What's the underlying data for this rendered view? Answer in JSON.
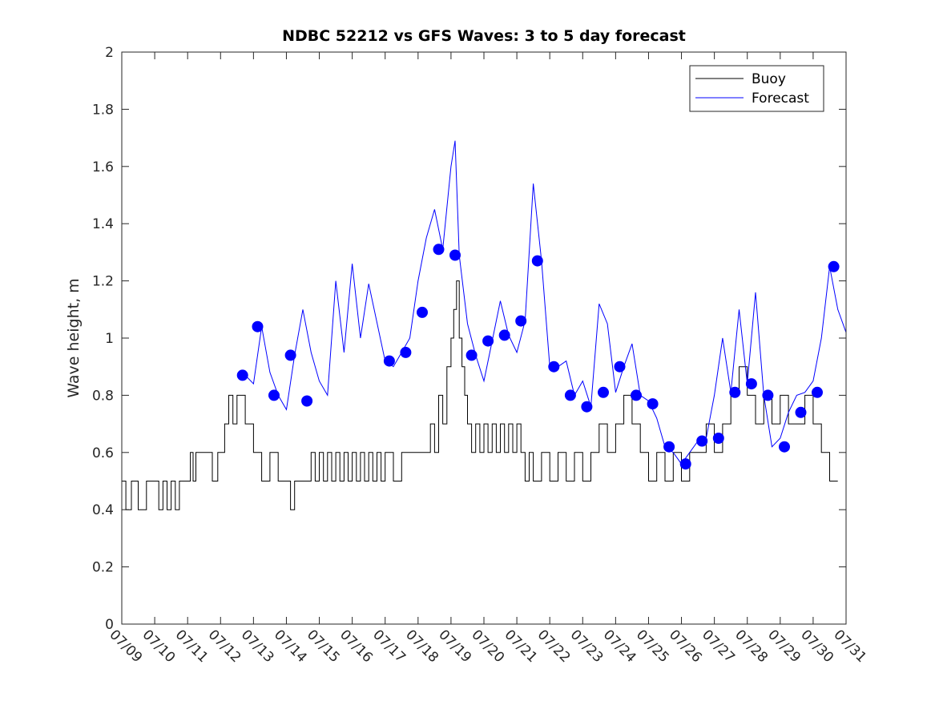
{
  "chart_data": {
    "type": "line",
    "title": "NDBC 52212 vs GFS Waves: 3 to 5 day forecast",
    "xlabel": "",
    "ylabel": "Wave height, m",
    "xlim": [
      "07/09",
      "07/31"
    ],
    "ylim": [
      0,
      2
    ],
    "x_tick_labels": [
      "07/09",
      "07/10",
      "07/11",
      "07/12",
      "07/13",
      "07/14",
      "07/15",
      "07/16",
      "07/17",
      "07/18",
      "07/19",
      "07/20",
      "07/21",
      "07/22",
      "07/23",
      "07/24",
      "07/25",
      "07/26",
      "07/27",
      "07/28",
      "07/29",
      "07/30",
      "07/31"
    ],
    "y_ticks": [
      0,
      0.2,
      0.4,
      0.6,
      0.8,
      1,
      1.2,
      1.4,
      1.6,
      1.8,
      2
    ],
    "y_tick_labels": [
      "0",
      "0.2",
      "0.4",
      "0.6",
      "0.8",
      "1",
      "1.2",
      "1.4",
      "1.6",
      "1.8",
      "2"
    ],
    "grid": false,
    "legend": {
      "position": "top-right",
      "entries": [
        "Buoy",
        "Forecast"
      ]
    },
    "colors": {
      "buoy": "#000000",
      "forecast": "#0000ff",
      "markers": "#0000ff"
    },
    "series": [
      {
        "name": "Buoy",
        "x": [
          "07/09 00:00",
          "07/09 03:00",
          "07/09 07:00",
          "07/09 12:00",
          "07/09 18:00",
          "07/10 00:00",
          "07/10 03:00",
          "07/10 06:00",
          "07/10 09:00",
          "07/10 12:00",
          "07/10 15:00",
          "07/10 18:00",
          "07/11 00:00",
          "07/11 02:00",
          "07/11 04:00",
          "07/11 06:00",
          "07/11 12:00",
          "07/11 18:00",
          "07/11 22:00",
          "07/12 00:00",
          "07/12 03:00",
          "07/12 06:00",
          "07/12 09:00",
          "07/12 12:00",
          "07/12 18:00",
          "07/13 00:00",
          "07/13 06:00",
          "07/13 12:00",
          "07/13 18:00",
          "07/14 00:00",
          "07/14 03:00",
          "07/14 06:00",
          "07/14 09:00",
          "07/14 12:00",
          "07/14 15:00",
          "07/14 18:00",
          "07/14 21:00",
          "07/15 00:00",
          "07/15 03:00",
          "07/15 06:00",
          "07/15 09:00",
          "07/15 12:00",
          "07/15 15:00",
          "07/15 18:00",
          "07/15 21:00",
          "07/16 00:00",
          "07/16 03:00",
          "07/16 06:00",
          "07/16 09:00",
          "07/16 12:00",
          "07/16 15:00",
          "07/16 18:00",
          "07/16 21:00",
          "07/17 00:00",
          "07/17 06:00",
          "07/17 12:00",
          "07/17 18:00",
          "07/18 00:00",
          "07/18 06:00",
          "07/18 09:00",
          "07/18 12:00",
          "07/18 15:00",
          "07/18 18:00",
          "07/18 21:00",
          "07/19 00:00",
          "07/19 02:00",
          "07/19 04:00",
          "07/19 06:00",
          "07/19 08:00",
          "07/19 10:00",
          "07/19 12:00",
          "07/19 15:00",
          "07/19 18:00",
          "07/19 21:00",
          "07/20 00:00",
          "07/20 03:00",
          "07/20 06:00",
          "07/20 09:00",
          "07/20 12:00",
          "07/20 15:00",
          "07/20 18:00",
          "07/20 21:00",
          "07/21 00:00",
          "07/21 03:00",
          "07/21 06:00",
          "07/21 09:00",
          "07/21 12:00",
          "07/21 18:00",
          "07/22 00:00",
          "07/22 06:00",
          "07/22 12:00",
          "07/22 18:00",
          "07/23 00:00",
          "07/23 06:00",
          "07/23 12:00",
          "07/23 18:00",
          "07/24 00:00",
          "07/24 06:00",
          "07/24 12:00",
          "07/24 18:00",
          "07/25 00:00",
          "07/25 06:00",
          "07/25 12:00",
          "07/25 18:00",
          "07/26 00:00",
          "07/26 06:00",
          "07/26 12:00",
          "07/26 18:00",
          "07/27 00:00",
          "07/27 06:00",
          "07/27 12:00",
          "07/27 18:00",
          "07/28 00:00",
          "07/28 06:00",
          "07/28 12:00",
          "07/28 18:00",
          "07/29 00:00",
          "07/29 06:00",
          "07/29 12:00",
          "07/29 18:00",
          "07/30 00:00",
          "07/30 06:00",
          "07/30 12:00",
          "07/30 18:00"
        ],
        "values": [
          0.5,
          0.4,
          0.5,
          0.4,
          0.5,
          0.5,
          0.4,
          0.5,
          0.4,
          0.5,
          0.4,
          0.5,
          0.5,
          0.6,
          0.5,
          0.6,
          0.6,
          0.5,
          0.6,
          0.6,
          0.7,
          0.8,
          0.7,
          0.8,
          0.7,
          0.6,
          0.5,
          0.6,
          0.5,
          0.5,
          0.4,
          0.5,
          0.5,
          0.5,
          0.5,
          0.6,
          0.5,
          0.6,
          0.5,
          0.6,
          0.5,
          0.6,
          0.5,
          0.6,
          0.5,
          0.6,
          0.5,
          0.6,
          0.5,
          0.6,
          0.5,
          0.6,
          0.5,
          0.6,
          0.5,
          0.6,
          0.6,
          0.6,
          0.6,
          0.7,
          0.6,
          0.8,
          0.7,
          0.9,
          1.0,
          1.1,
          1.2,
          1.0,
          0.9,
          0.8,
          0.7,
          0.6,
          0.7,
          0.6,
          0.7,
          0.6,
          0.7,
          0.6,
          0.7,
          0.6,
          0.7,
          0.6,
          0.7,
          0.6,
          0.5,
          0.6,
          0.5,
          0.6,
          0.5,
          0.6,
          0.5,
          0.6,
          0.5,
          0.6,
          0.7,
          0.6,
          0.7,
          0.8,
          0.7,
          0.6,
          0.5,
          0.6,
          0.5,
          0.6,
          0.5,
          0.6,
          0.6,
          0.7,
          0.6,
          0.7,
          0.8,
          0.9,
          0.8,
          0.7,
          0.8,
          0.7,
          0.8,
          0.7,
          0.7,
          0.8,
          0.7,
          0.6,
          0.5,
          0.5
        ]
      },
      {
        "name": "Forecast",
        "x": [
          "07/12 18:00",
          "07/13 00:00",
          "07/13 06:00",
          "07/13 12:00",
          "07/13 18:00",
          "07/14 00:00",
          "07/14 06:00",
          "07/14 12:00",
          "07/14 18:00",
          "07/15 00:00",
          "07/15 06:00",
          "07/15 12:00",
          "07/15 18:00",
          "07/16 00:00",
          "07/16 06:00",
          "07/16 12:00",
          "07/17 00:00",
          "07/17 06:00",
          "07/17 12:00",
          "07/17 18:00",
          "07/18 00:00",
          "07/18 06:00",
          "07/18 12:00",
          "07/18 18:00",
          "07/19 00:00",
          "07/19 03:00",
          "07/19 06:00",
          "07/19 12:00",
          "07/19 18:00",
          "07/20 00:00",
          "07/20 06:00",
          "07/20 12:00",
          "07/20 18:00",
          "07/21 00:00",
          "07/21 06:00",
          "07/21 12:00",
          "07/21 18:00",
          "07/22 00:00",
          "07/22 06:00",
          "07/22 12:00",
          "07/22 18:00",
          "07/23 00:00",
          "07/23 06:00",
          "07/23 12:00",
          "07/23 18:00",
          "07/24 00:00",
          "07/24 06:00",
          "07/24 12:00",
          "07/24 18:00",
          "07/25 00:00",
          "07/25 06:00",
          "07/25 12:00",
          "07/25 18:00",
          "07/26 00:00",
          "07/26 06:00",
          "07/26 12:00",
          "07/26 18:00",
          "07/27 00:00",
          "07/27 06:00",
          "07/27 12:00",
          "07/27 18:00",
          "07/28 00:00",
          "07/28 06:00",
          "07/28 12:00",
          "07/28 18:00",
          "07/29 00:00",
          "07/29 06:00",
          "07/29 12:00",
          "07/29 18:00",
          "07/30 00:00",
          "07/30 06:00",
          "07/30 12:00",
          "07/30 18:00",
          "07/31 00:00"
        ],
        "values": [
          0.87,
          0.84,
          1.04,
          0.88,
          0.8,
          0.75,
          0.94,
          1.1,
          0.95,
          0.85,
          0.8,
          1.2,
          0.95,
          1.26,
          1.0,
          1.19,
          0.92,
          0.9,
          0.95,
          1.0,
          1.2,
          1.35,
          1.45,
          1.31,
          1.6,
          1.69,
          1.29,
          1.05,
          0.94,
          0.85,
          0.99,
          1.13,
          1.01,
          0.95,
          1.06,
          1.54,
          1.27,
          0.9,
          0.9,
          0.92,
          0.8,
          0.85,
          0.76,
          1.12,
          1.05,
          0.81,
          0.9,
          0.98,
          0.8,
          0.78,
          0.72,
          0.62,
          0.6,
          0.56,
          0.6,
          0.64,
          0.65,
          0.8,
          1.0,
          0.81,
          1.1,
          0.84,
          1.16,
          0.8,
          0.62,
          0.65,
          0.74,
          0.8,
          0.81,
          0.85,
          1.0,
          1.25,
          1.1,
          1.02
        ]
      }
    ],
    "markers": {
      "x": [
        "07/12 16:00",
        "07/13 03:00",
        "07/13 15:00",
        "07/14 03:00",
        "07/14 15:00",
        "07/17 03:00",
        "07/17 15:00",
        "07/18 03:00",
        "07/18 15:00",
        "07/19 03:00",
        "07/19 15:00",
        "07/20 03:00",
        "07/20 15:00",
        "07/21 03:00",
        "07/21 15:00",
        "07/22 03:00",
        "07/22 15:00",
        "07/23 03:00",
        "07/23 15:00",
        "07/24 03:00",
        "07/24 15:00",
        "07/25 03:00",
        "07/25 15:00",
        "07/26 03:00",
        "07/26 15:00",
        "07/27 03:00",
        "07/27 15:00",
        "07/28 03:00",
        "07/28 15:00",
        "07/29 03:00",
        "07/29 15:00",
        "07/30 03:00",
        "07/30 15:00"
      ],
      "values": [
        0.87,
        1.04,
        0.8,
        0.94,
        0.78,
        0.92,
        0.95,
        1.09,
        1.31,
        1.29,
        0.94,
        0.99,
        1.01,
        1.06,
        1.27,
        0.9,
        0.8,
        0.76,
        0.81,
        0.9,
        0.8,
        0.77,
        0.62,
        0.56,
        0.64,
        0.65,
        0.81,
        0.84,
        0.8,
        0.62,
        0.74,
        0.81,
        1.25
      ]
    }
  }
}
